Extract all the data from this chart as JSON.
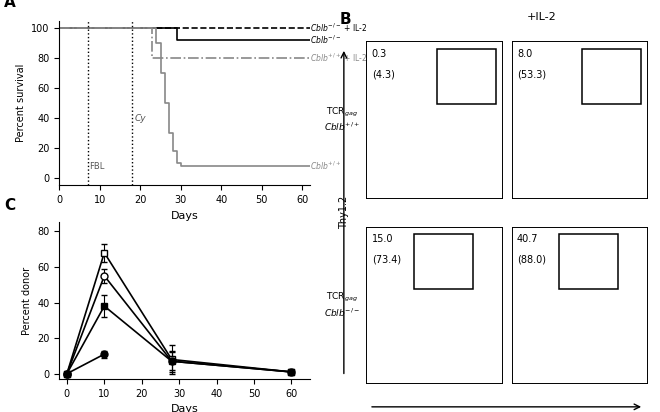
{
  "panel_A": {
    "ylabel": "Percent survival",
    "xlabel": "Days",
    "xlim": [
      0,
      62
    ],
    "ylim": [
      -5,
      105
    ],
    "xticks": [
      0,
      10,
      20,
      30,
      40,
      50,
      60
    ],
    "yticks": [
      0,
      20,
      40,
      60,
      80,
      100
    ],
    "fbl_x": 7,
    "cy_x": 18,
    "curves": {
      "cblb_ko_il2": {
        "x": [
          0,
          36,
          36,
          62
        ],
        "y": [
          100,
          100,
          100,
          100
        ],
        "linestyle": "--",
        "color": "#000000",
        "linewidth": 1.2
      },
      "cblb_ko": {
        "x": [
          0,
          27,
          29,
          29,
          62
        ],
        "y": [
          100,
          100,
          100,
          92,
          92
        ],
        "linestyle": "-",
        "color": "#000000",
        "linewidth": 1.2
      },
      "cblb_wt_il2": {
        "x": [
          0,
          23,
          23,
          62
        ],
        "y": [
          100,
          100,
          80,
          80
        ],
        "linestyle": "-.",
        "color": "#888888",
        "linewidth": 1.2
      },
      "cblb_wt": {
        "x": [
          0,
          23,
          24,
          25,
          26,
          27,
          28,
          29,
          30,
          62
        ],
        "y": [
          100,
          100,
          90,
          70,
          50,
          30,
          18,
          10,
          8,
          8
        ],
        "linestyle": "-",
        "color": "#888888",
        "linewidth": 1.2
      }
    },
    "legend": [
      {
        "text": "$Cblb^{-/-}$ + IL-2",
        "y_data": 100,
        "style": "end"
      },
      {
        "text": "$Cblb^{-/-}$",
        "y_data": 92,
        "style": "end"
      },
      {
        "text": "$\\cdot$$Cblb^{+/+}$ + IL-2",
        "y_data": 80,
        "style": "end"
      },
      {
        "text": "$Cblb^{+/+}$",
        "y_data": 8,
        "style": "end"
      }
    ]
  },
  "panel_C": {
    "ylabel": "Percent donor",
    "xlabel": "Days",
    "xlim": [
      -2,
      65
    ],
    "ylim": [
      -3,
      85
    ],
    "xticks": [
      0,
      10,
      20,
      30,
      40,
      50,
      60
    ],
    "yticks": [
      0,
      20,
      40,
      60,
      80
    ],
    "series": [
      {
        "x": [
          0,
          10,
          28,
          60
        ],
        "y": [
          0,
          68,
          8,
          1
        ],
        "yerr": [
          0,
          5,
          8,
          0.5
        ],
        "marker": "s",
        "filled": false,
        "ms": 5
      },
      {
        "x": [
          0,
          10,
          28,
          60
        ],
        "y": [
          0,
          55,
          7,
          1
        ],
        "yerr": [
          0,
          4,
          6,
          0.5
        ],
        "marker": "o",
        "filled": false,
        "ms": 5
      },
      {
        "x": [
          0,
          10,
          28,
          60
        ],
        "y": [
          0,
          38,
          7,
          1
        ],
        "yerr": [
          0,
          6,
          5,
          0.5
        ],
        "marker": "s",
        "filled": true,
        "ms": 5
      },
      {
        "x": [
          0,
          10
        ],
        "y": [
          0,
          11
        ],
        "yerr": [
          0,
          2
        ],
        "marker": "o",
        "filled": true,
        "ms": 5
      }
    ]
  }
}
